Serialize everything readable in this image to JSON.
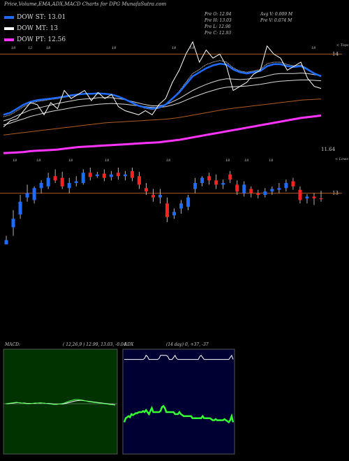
{
  "header": {
    "title": "Price,Volume,EMA,ADX,MACD Charts for DPG MunafaSutra.com"
  },
  "legend": [
    {
      "label": "DOW ST: 13.01",
      "color": "#1e6cff"
    },
    {
      "label": "DOW MT: 13",
      "color": "#ffffff"
    },
    {
      "label": "DOW PT: 12.56",
      "color": "#ff33ff"
    }
  ],
  "ohlc": {
    "open": "Pre   O: 12.94",
    "high": "Pre   H: 13.03",
    "low": "Pre   L: 12.90",
    "close": "Pre   C: 12.93",
    "avg_vol": "Avg V: 0.009  M",
    "pre_vol": "Pre   V: 0.074   M"
  },
  "panels": {
    "macd": {
      "title": "MACD:",
      "params": "( 12,26,9 ) 12.99, 13.03, -0.04"
    },
    "adx": {
      "title": "ADX",
      "params": "(14   day) 0, +37, -37"
    }
  },
  "colors": {
    "up": "#1e6cff",
    "down": "#ff2020",
    "ema_short": "#1e6cff",
    "ema_long": "#ff33ff",
    "level_line": "#b35a1f",
    "macd_bg": "#003300",
    "adx_bg": "#000033",
    "adx_line": "#33ff33"
  },
  "chart_data": [
    {
      "type": "line",
      "name": "price-ema-chart",
      "right_labels": {
        "upper_corner": "< Tops",
        "lower_corner": "< Lows",
        "level_1": "14",
        "level_2": "11.64",
        "candle_level": "13"
      },
      "top_tick_labels": [
        "18",
        "12",
        "18",
        "18",
        "18",
        "18",
        "18"
      ],
      "low_tick_labels": [
        "18",
        "18",
        "18",
        "18",
        "18",
        "18",
        "18",
        "18"
      ],
      "y_scale": [
        11.4,
        14.3
      ],
      "level_lines": [
        14,
        11.64
      ],
      "price_line": [
        12.2,
        12.35,
        12.4,
        12.6,
        12.8,
        12.75,
        12.5,
        12.8,
        12.65,
        13.1,
        12.9,
        13.0,
        13.1,
        12.85,
        13.05,
        12.9,
        13.0,
        12.7,
        12.6,
        12.55,
        12.5,
        12.6,
        12.5,
        12.75,
        12.9,
        13.3,
        13.6,
        14.0,
        14.3,
        13.8,
        14.1,
        13.9,
        14.0,
        13.7,
        13.1,
        13.2,
        13.3,
        13.5,
        13.6,
        14.2,
        14.0,
        13.9,
        13.6,
        13.7,
        13.8,
        13.4,
        13.2,
        13.15
      ],
      "ema_short": [
        12.5,
        12.55,
        12.65,
        12.75,
        12.82,
        12.86,
        12.88,
        12.9,
        12.92,
        12.95,
        12.98,
        13.0,
        13.02,
        13.02,
        13.03,
        13.02,
        13.0,
        12.95,
        12.88,
        12.8,
        12.72,
        12.68,
        12.65,
        12.68,
        12.75,
        12.9,
        13.05,
        13.25,
        13.45,
        13.55,
        13.65,
        13.72,
        13.76,
        13.74,
        13.62,
        13.55,
        13.52,
        13.55,
        13.58,
        13.7,
        13.75,
        13.75,
        13.7,
        13.68,
        13.7,
        13.62,
        13.52,
        13.45
      ],
      "ema_mid_upper": [
        12.35,
        12.4,
        12.48,
        12.55,
        12.62,
        12.66,
        12.7,
        12.74,
        12.78,
        12.81,
        12.84,
        12.87,
        12.89,
        12.9,
        12.92,
        12.92,
        12.92,
        12.9,
        12.87,
        12.83,
        12.79,
        12.75,
        12.72,
        12.72,
        12.75,
        12.82,
        12.9,
        13.0,
        13.1,
        13.18,
        13.25,
        13.31,
        13.36,
        13.39,
        13.38,
        13.37,
        13.38,
        13.4,
        13.42,
        13.46,
        13.5,
        13.52,
        13.52,
        13.52,
        13.53,
        13.52,
        13.49,
        13.47
      ],
      "ema_mid_lower": [
        12.25,
        12.29,
        12.35,
        12.4,
        12.46,
        12.5,
        12.54,
        12.58,
        12.61,
        12.64,
        12.67,
        12.7,
        12.72,
        12.74,
        12.76,
        12.77,
        12.78,
        12.77,
        12.76,
        12.74,
        12.72,
        12.7,
        12.68,
        12.68,
        12.7,
        12.74,
        12.79,
        12.86,
        12.93,
        12.99,
        13.05,
        13.1,
        13.15,
        13.18,
        13.19,
        13.2,
        13.21,
        13.23,
        13.25,
        13.28,
        13.31,
        13.33,
        13.34,
        13.35,
        13.36,
        13.36,
        13.35,
        13.34
      ],
      "ema_dotted": [
        12.45,
        12.5,
        12.6,
        12.7,
        12.78,
        12.83,
        12.85,
        12.88,
        12.9,
        12.93,
        12.96,
        12.99,
        13.01,
        13.01,
        13.02,
        13.01,
        12.99,
        12.94,
        12.87,
        12.79,
        12.71,
        12.66,
        12.63,
        12.66,
        12.74,
        12.9,
        13.08,
        13.3,
        13.52,
        13.62,
        13.74,
        13.8,
        13.84,
        13.8,
        13.66,
        13.58,
        13.55,
        13.58,
        13.62,
        13.76,
        13.8,
        13.8,
        13.74,
        13.71,
        13.73,
        13.64,
        13.52,
        13.44
      ],
      "ema_long_orange": [
        12.0,
        12.02,
        12.04,
        12.06,
        12.08,
        12.1,
        12.12,
        12.14,
        12.16,
        12.18,
        12.2,
        12.22,
        12.24,
        12.26,
        12.28,
        12.3,
        12.31,
        12.32,
        12.33,
        12.34,
        12.35,
        12.36,
        12.37,
        12.38,
        12.39,
        12.41,
        12.43,
        12.46,
        12.49,
        12.52,
        12.55,
        12.58,
        12.61,
        12.64,
        12.66,
        12.68,
        12.7,
        12.72,
        12.74,
        12.76,
        12.78,
        12.8,
        12.82,
        12.84,
        12.86,
        12.87,
        12.88,
        12.89
      ],
      "ema_pt": [
        11.55,
        11.56,
        11.57,
        11.58,
        11.6,
        11.61,
        11.62,
        11.63,
        11.64,
        11.66,
        11.68,
        11.7,
        11.71,
        11.72,
        11.73,
        11.74,
        11.75,
        11.76,
        11.77,
        11.78,
        11.79,
        11.8,
        11.81,
        11.82,
        11.84,
        11.86,
        11.88,
        11.91,
        11.94,
        11.97,
        12.0,
        12.03,
        12.06,
        12.09,
        12.12,
        12.15,
        12.18,
        12.21,
        12.24,
        12.27,
        12.3,
        12.33,
        12.36,
        12.39,
        12.42,
        12.44,
        12.46,
        12.48
      ]
    },
    {
      "type": "bar",
      "name": "candlestick-chart",
      "y_scale": [
        12.3,
        13.3
      ],
      "reference_level": 13,
      "candles": [
        {
          "o": 12.4,
          "c": 12.45,
          "h": 12.5,
          "l": 12.4
        },
        {
          "o": 12.6,
          "c": 12.7,
          "h": 12.8,
          "l": 12.5
        },
        {
          "o": 12.75,
          "c": 12.9,
          "h": 12.98,
          "l": 12.7
        },
        {
          "o": 12.95,
          "c": 13.0,
          "h": 13.1,
          "l": 12.9
        },
        {
          "o": 12.92,
          "c": 13.06,
          "h": 13.08,
          "l": 12.88
        },
        {
          "o": 13.06,
          "c": 13.12,
          "h": 13.15,
          "l": 13.0
        },
        {
          "o": 13.08,
          "c": 13.18,
          "h": 13.24,
          "l": 13.05
        },
        {
          "o": 13.2,
          "c": 13.15,
          "h": 13.28,
          "l": 13.12
        },
        {
          "o": 13.18,
          "c": 13.08,
          "h": 13.25,
          "l": 13.05
        },
        {
          "o": 13.06,
          "c": 13.12,
          "h": 13.18,
          "l": 13.0
        },
        {
          "o": 13.12,
          "c": 13.14,
          "h": 13.2,
          "l": 13.08
        },
        {
          "o": 13.12,
          "c": 13.24,
          "h": 13.28,
          "l": 13.1
        },
        {
          "o": 13.24,
          "c": 13.19,
          "h": 13.3,
          "l": 13.15
        },
        {
          "o": 13.2,
          "c": 13.22,
          "h": 13.25,
          "l": 13.18
        },
        {
          "o": 13.23,
          "c": 13.18,
          "h": 13.28,
          "l": 13.14
        },
        {
          "o": 13.19,
          "c": 13.22,
          "h": 13.26,
          "l": 13.15
        },
        {
          "o": 13.24,
          "c": 13.2,
          "h": 13.3,
          "l": 13.16
        },
        {
          "o": 13.2,
          "c": 13.22,
          "h": 13.26,
          "l": 13.15
        },
        {
          "o": 13.26,
          "c": 13.18,
          "h": 13.3,
          "l": 13.14
        },
        {
          "o": 13.2,
          "c": 13.1,
          "h": 13.25,
          "l": 13.05
        },
        {
          "o": 13.06,
          "c": 13.02,
          "h": 13.12,
          "l": 12.98
        },
        {
          "o": 12.98,
          "c": 12.95,
          "h": 13.05,
          "l": 12.9
        },
        {
          "o": 12.95,
          "c": 12.98,
          "h": 13.05,
          "l": 12.88
        },
        {
          "o": 12.88,
          "c": 12.72,
          "h": 12.95,
          "l": 12.66
        },
        {
          "o": 12.74,
          "c": 12.78,
          "h": 12.82,
          "l": 12.7
        },
        {
          "o": 12.82,
          "c": 12.88,
          "h": 12.92,
          "l": 12.76
        },
        {
          "o": 12.84,
          "c": 12.95,
          "h": 12.98,
          "l": 12.8
        },
        {
          "o": 13.05,
          "c": 13.12,
          "h": 13.18,
          "l": 13.0
        },
        {
          "o": 13.12,
          "c": 13.18,
          "h": 13.2,
          "l": 13.08
        },
        {
          "o": 13.2,
          "c": 13.15,
          "h": 13.24,
          "l": 13.1
        },
        {
          "o": 13.15,
          "c": 13.1,
          "h": 13.22,
          "l": 13.05
        },
        {
          "o": 13.1,
          "c": 13.12,
          "h": 13.16,
          "l": 13.05
        },
        {
          "o": 13.22,
          "c": 13.16,
          "h": 13.26,
          "l": 13.12
        },
        {
          "o": 13.1,
          "c": 13.02,
          "h": 13.15,
          "l": 12.98
        },
        {
          "o": 13.0,
          "c": 13.1,
          "h": 13.14,
          "l": 12.96
        },
        {
          "o": 13.05,
          "c": 13.0,
          "h": 13.08,
          "l": 12.95
        },
        {
          "o": 13.0,
          "c": 12.98,
          "h": 13.04,
          "l": 12.94
        },
        {
          "o": 12.98,
          "c": 13.02,
          "h": 13.06,
          "l": 12.95
        },
        {
          "o": 13.02,
          "c": 13.05,
          "h": 13.08,
          "l": 12.98
        },
        {
          "o": 13.04,
          "c": 13.06,
          "h": 13.12,
          "l": 13.0
        },
        {
          "o": 13.06,
          "c": 13.12,
          "h": 13.16,
          "l": 13.02
        },
        {
          "o": 13.14,
          "c": 13.08,
          "h": 13.18,
          "l": 13.04
        },
        {
          "o": 13.04,
          "c": 12.92,
          "h": 13.08,
          "l": 12.88
        },
        {
          "o": 12.94,
          "c": 12.96,
          "h": 12.99,
          "l": 12.88
        },
        {
          "o": 12.96,
          "c": 12.94,
          "h": 13.0,
          "l": 12.86
        },
        {
          "o": 12.94,
          "c": 12.93,
          "h": 13.03,
          "l": 12.9
        }
      ]
    },
    {
      "type": "line",
      "name": "macd-chart",
      "y_scale": [
        -1,
        1
      ],
      "macd": [
        0.0,
        0.01,
        0.02,
        0.03,
        0.04,
        0.03,
        0.02,
        0.01,
        0.0,
        0.0,
        0.01,
        0.02,
        0.02,
        0.03,
        0.02,
        0.01,
        0.0,
        -0.01,
        -0.02,
        -0.02,
        -0.01,
        0.0,
        0.02,
        0.05,
        0.08,
        0.1,
        0.12,
        0.12,
        0.11,
        0.1,
        0.08,
        0.06,
        0.05,
        0.04,
        0.03,
        0.02,
        0.01,
        0.0,
        -0.01,
        -0.02,
        -0.03,
        -0.04
      ],
      "signal": [
        0.0,
        0.0,
        0.01,
        0.02,
        0.03,
        0.03,
        0.02,
        0.02,
        0.01,
        0.01,
        0.01,
        0.01,
        0.02,
        0.02,
        0.02,
        0.01,
        0.01,
        0.0,
        -0.01,
        -0.01,
        -0.01,
        -0.01,
        0.0,
        0.02,
        0.04,
        0.06,
        0.08,
        0.09,
        0.1,
        0.09,
        0.08,
        0.07,
        0.06,
        0.05,
        0.04,
        0.03,
        0.02,
        0.01,
        0.0,
        -0.01,
        -0.02,
        -0.03
      ]
    },
    {
      "type": "line",
      "name": "adx-chart",
      "y_scale": [
        0,
        100
      ],
      "di_line": [
        92,
        92,
        92,
        92,
        92,
        92,
        92,
        92,
        92,
        92,
        92,
        92,
        92,
        92,
        93,
        96,
        95,
        92,
        92,
        92,
        92,
        92,
        92,
        92,
        93,
        96,
        96,
        96,
        96,
        96,
        95,
        92,
        92,
        92,
        94,
        96,
        93,
        92,
        92,
        92,
        92,
        92,
        92,
        92,
        92,
        92,
        92,
        92,
        92,
        92,
        92,
        92,
        95,
        96,
        94,
        92,
        92,
        92,
        92,
        92,
        92,
        92,
        92,
        92,
        92,
        92,
        92,
        92,
        92,
        92,
        92,
        92,
        92,
        94,
        96,
        92
      ],
      "adx_line": [
        30,
        34,
        35,
        36,
        35,
        38,
        37,
        38,
        39,
        39,
        40,
        40,
        40,
        41,
        40,
        42,
        40,
        38,
        41,
        44,
        40,
        40,
        40,
        40,
        40,
        41,
        45,
        46,
        44,
        40,
        40,
        40,
        40,
        40,
        40,
        38,
        38,
        38,
        40,
        38,
        37,
        36,
        36,
        36,
        36,
        36,
        36,
        34,
        34,
        34,
        34,
        34,
        34,
        34,
        36,
        34,
        34,
        34,
        34,
        34,
        33,
        32,
        32,
        33,
        32,
        32,
        32,
        32,
        32,
        33,
        32,
        31,
        30,
        32,
        36,
        30
      ]
    }
  ]
}
